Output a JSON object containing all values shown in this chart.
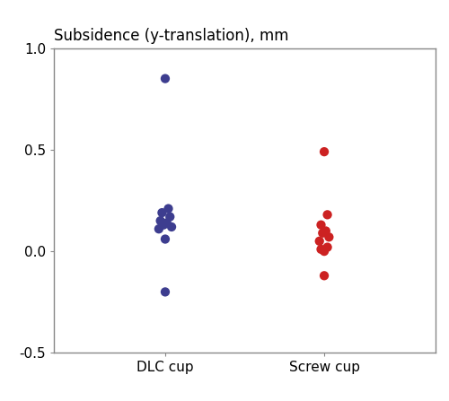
{
  "title": "Subsidence (y-translation), mm",
  "categories": [
    "DLC cup",
    "Screw cup"
  ],
  "dlc_values": [
    0.85,
    0.21,
    0.19,
    0.17,
    0.15,
    0.14,
    0.13,
    0.12,
    0.11,
    0.06,
    -0.2
  ],
  "screw_values": [
    0.49,
    0.18,
    0.13,
    0.1,
    0.09,
    0.07,
    0.05,
    0.02,
    0.01,
    0.0,
    -0.12
  ],
  "dlc_color": "#3D3D8F",
  "screw_color": "#CC2222",
  "marker_size": 55,
  "marker_style": "o",
  "ylim": [
    -0.5,
    1.0
  ],
  "yticks": [
    -0.5,
    0.0,
    0.5,
    1.0
  ],
  "ytick_labels": [
    "-0.5",
    "0.0",
    "0.5",
    "1.0"
  ],
  "xlim": [
    0.3,
    2.7
  ],
  "title_fontsize": 12,
  "tick_fontsize": 11,
  "bg_color": "#ffffff",
  "plot_bg_color": "#ffffff",
  "spine_color": "#888888",
  "jitter_dlc": [
    0.0,
    0.02,
    -0.02,
    0.03,
    -0.03,
    0.01,
    -0.01,
    0.04,
    -0.04,
    0.0,
    0.0
  ],
  "jitter_screw": [
    0.0,
    0.02,
    -0.02,
    0.01,
    -0.01,
    0.03,
    -0.03,
    0.02,
    -0.02,
    0.0,
    0.0
  ]
}
